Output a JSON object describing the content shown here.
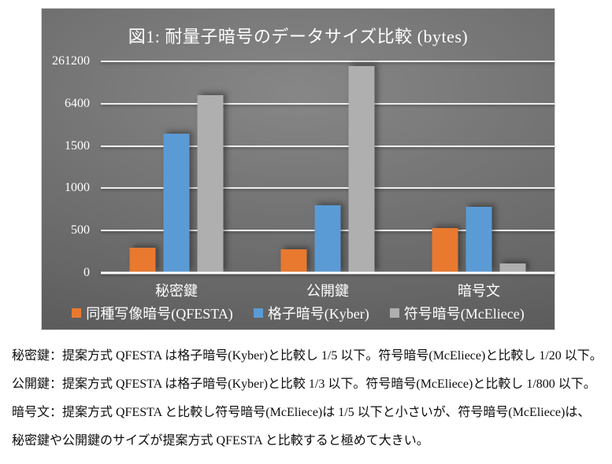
{
  "chart_data": {
    "type": "bar",
    "title": "図1: 耐量子暗号のデータサイズ比較 (bytes)",
    "unit": "bytes",
    "categories": [
      "秘密鍵",
      "公開鍵",
      "暗号文"
    ],
    "series": [
      {
        "name": "同種写像暗号(QFESTA)",
        "color": "#E8792F",
        "values": [
          300,
          260,
          520
        ],
        "bar_height_pct": [
          11.9,
          11.2,
          21.3
        ]
      },
      {
        "name": "格子暗号(Kyber)",
        "color": "#5B9BD5",
        "values": [
          1632,
          800,
          768
        ],
        "bar_height_pct": [
          65.7,
          32.1,
          31.3
        ]
      },
      {
        "name": "符号暗号(McEliece)",
        "color": "#AFAFAF",
        "values": [
          6500,
          261120,
          100
        ],
        "bar_height_pct": [
          84.0,
          97.8,
          4.5
        ]
      }
    ],
    "y_axis": {
      "ticks": [
        0,
        500,
        1000,
        1500,
        6400,
        261200
      ],
      "tick_labels": [
        "0",
        "500",
        "1000",
        "1500",
        "6400",
        "261200"
      ],
      "scale": "non-linear, listed ticks evenly spaced"
    },
    "grid": true,
    "legend_position": "bottom",
    "colors": {
      "plot_background_center": "#878787",
      "plot_background_edge": "#525252",
      "gridline": "#efefef",
      "axis_text": "#ffffff"
    }
  },
  "notes": {
    "lines": [
      "秘密鍵：提案方式 QFESTA は格子暗号(Kyber)と比較し 1/5 以下。符号暗号(McEliece)と比較し 1/20 以下。",
      "公開鍵：提案方式 QFESTA は格子暗号(Kyber)と比較 1/3 以下。符号暗号(McEliece)と比較し 1/800 以下。",
      "暗号文：提案方式 QFESTA と比較し符号暗号(McEliece)は 1/5 以下と小さいが、符号暗号(McEliece)は、",
      "秘密鍵や公開鍵のサイズが提案方式 QFESTA と比較すると極めて大きい。"
    ]
  }
}
